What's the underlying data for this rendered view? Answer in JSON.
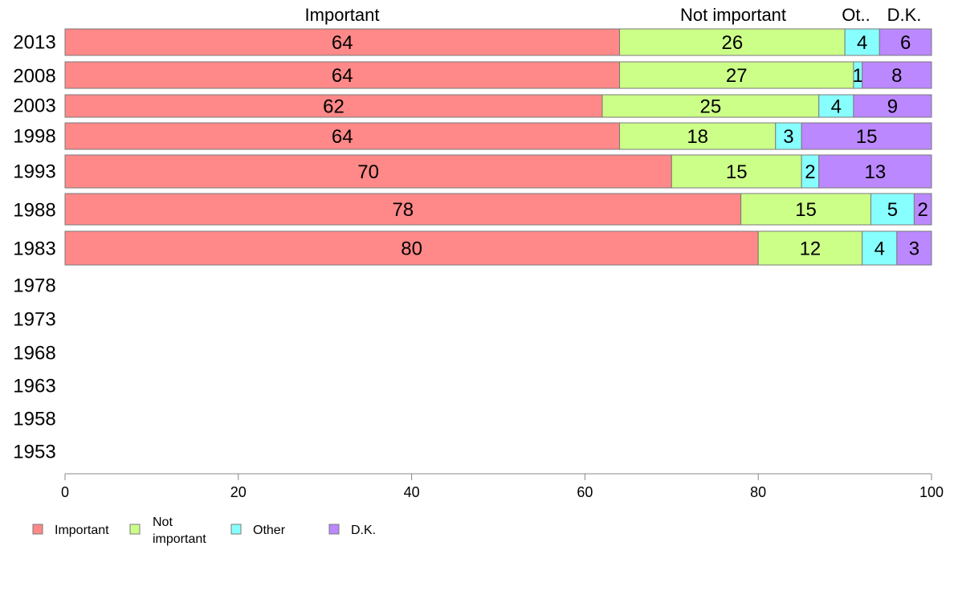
{
  "chart_data": {
    "type": "bar",
    "orientation": "horizontal",
    "stacked": true,
    "categories": [
      "2013",
      "2008",
      "2003",
      "1998",
      "1993",
      "1988",
      "1983",
      "1978",
      "1973",
      "1968",
      "1963",
      "1958",
      "1953"
    ],
    "series": [
      {
        "name": "Important",
        "color": "#ff8888",
        "values": [
          64,
          64,
          62,
          64,
          70,
          78,
          80,
          null,
          null,
          null,
          null,
          null,
          null
        ]
      },
      {
        "name": "Not important",
        "color": "#ccff88",
        "values": [
          26,
          27,
          25,
          18,
          15,
          15,
          12,
          null,
          null,
          null,
          null,
          null,
          null
        ]
      },
      {
        "name": "Other",
        "color": "#88ffff",
        "values": [
          4,
          1,
          4,
          3,
          2,
          5,
          4,
          null,
          null,
          null,
          null,
          null,
          null
        ]
      },
      {
        "name": "D.K.",
        "color": "#bb88ff",
        "values": [
          6,
          8,
          9,
          15,
          13,
          2,
          3,
          null,
          null,
          null,
          null,
          null,
          null
        ]
      }
    ],
    "column_headers": [
      "Important",
      "Not important",
      "Ot..",
      "D.K."
    ],
    "xlim": [
      0,
      100
    ],
    "xticks": [
      "0",
      "20",
      "40",
      "60",
      "80",
      "100"
    ],
    "legend": {
      "position": "bottom-left",
      "entries": [
        {
          "lines": [
            "Important"
          ]
        },
        {
          "lines": [
            "Not",
            "important"
          ]
        },
        {
          "lines": [
            "Other"
          ]
        },
        {
          "lines": [
            "D.K."
          ]
        }
      ]
    },
    "grid": false
  }
}
